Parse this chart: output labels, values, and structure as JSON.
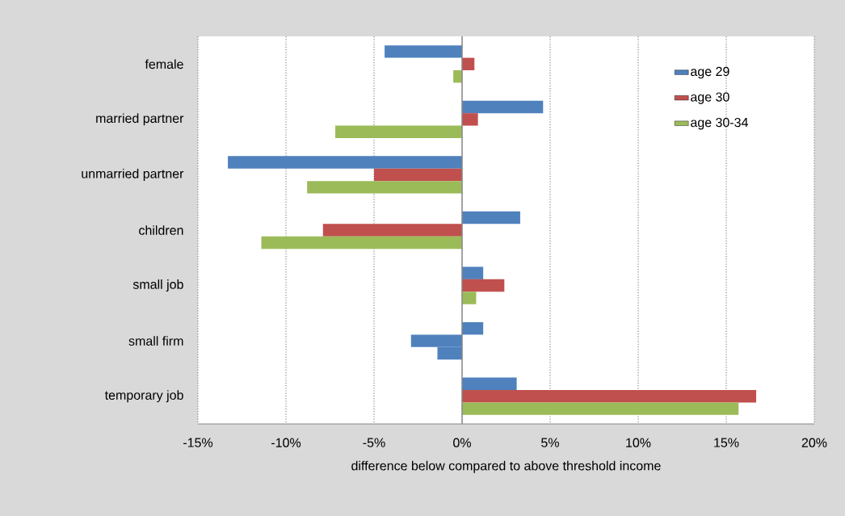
{
  "chart_data": {
    "type": "bar",
    "orientation": "horizontal",
    "xlabel": "difference below compared to above threshold income",
    "categories": [
      "female",
      "married partner",
      "unmarried partner",
      "children",
      "small job",
      "small firm",
      "temporary job"
    ],
    "series": [
      {
        "name": "age 29",
        "color": "#4f81bd",
        "values": [
          -4.4,
          4.6,
          -13.3,
          3.3,
          1.2,
          1.2,
          3.1
        ]
      },
      {
        "name": "age 30",
        "color": "#c0504d",
        "colors": [
          "#c0504d",
          "#c0504d",
          "#c0504d",
          "#c0504d",
          "#c0504d",
          "#4f81bd",
          "#c0504d"
        ],
        "values": [
          0.7,
          0.9,
          -5.0,
          -7.9,
          2.4,
          -2.9,
          16.7
        ]
      },
      {
        "name": "age 30-34",
        "color": "#9bbb59",
        "colors": [
          "#9bbb59",
          "#9bbb59",
          "#9bbb59",
          "#9bbb59",
          "#9bbb59",
          "#4f81bd",
          "#9bbb59"
        ],
        "values": [
          -0.5,
          -7.2,
          -8.8,
          -11.4,
          0.8,
          -1.4,
          15.7
        ]
      }
    ],
    "xlim": [
      -15,
      20
    ],
    "xticks": [
      {
        "value": -15,
        "label": "-15%"
      },
      {
        "value": -10,
        "label": "-10%"
      },
      {
        "value": -5,
        "label": "-5%"
      },
      {
        "value": 0,
        "label": "0%"
      },
      {
        "value": 5,
        "label": "5%"
      },
      {
        "value": 10,
        "label": "10%"
      },
      {
        "value": 15,
        "label": "15%"
      },
      {
        "value": 20,
        "label": "20%"
      }
    ],
    "grid": "x",
    "legend": "top right"
  }
}
